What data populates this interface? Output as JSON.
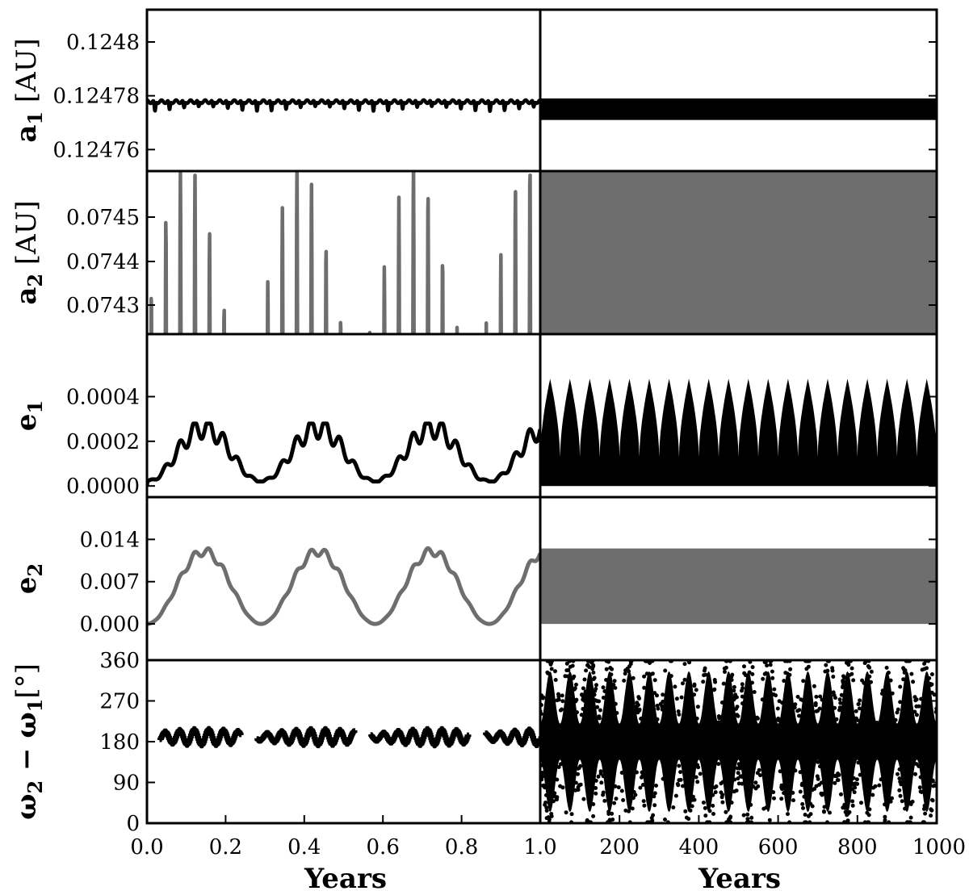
{
  "chart_data": {
    "type": "line",
    "layout": "5 rows x 2 columns, shared y-axis per row",
    "colors": {
      "planet1": "#000000",
      "planet2": "#6e6e6e"
    },
    "left_x": {
      "label": "Years",
      "range": [
        0.0,
        1.0
      ],
      "ticks": [
        "0.0",
        "0.2",
        "0.4",
        "0.6",
        "0.8",
        "1.0"
      ]
    },
    "right_x": {
      "label": "Years",
      "range": [
        0,
        1000
      ],
      "ticks": [
        "200",
        "400",
        "600",
        "800",
        "1000"
      ]
    },
    "panels": [
      {
        "id": "a1",
        "ylabel_main": "a",
        "ylabel_sub": "1",
        "ylabel_unit": " [AU]",
        "yrange": [
          0.124752,
          0.124812
        ],
        "yticks": [
          {
            "v": 0.1248,
            "t": "0.1248"
          },
          {
            "v": 0.12478,
            "t": "0.12478"
          },
          {
            "v": 0.12476,
            "t": "0.12476"
          }
        ],
        "color": "#000000",
        "left": {
          "style": "line",
          "series": "short-period oscillation",
          "baseline": 0.124776,
          "high": 0.124779,
          "low": 0.124772,
          "cycles_per_year": 27
        },
        "right": {
          "style": "band",
          "band": [
            0.124771,
            0.124779
          ]
        }
      },
      {
        "id": "a2",
        "ylabel_main": "a",
        "ylabel_sub": "2",
        "ylabel_unit": " [AU]",
        "yrange": [
          0.074425,
          0.07446
        ],
        "yticks": [
          {
            "v": 0.0745,
            "t": "0.0745"
          },
          {
            "v": 0.0744,
            "t": "0.0744"
          },
          {
            "v": 0.0743,
            "t": "0.0743"
          }
        ],
        "ytick_note": "tick values as printed; placed at 0.07445/0.07440/0.07435 positions",
        "color": "#6e6e6e",
        "left": {
          "style": "line",
          "series": "short-period oscillation",
          "baseline": 0.07438,
          "high": 0.07447,
          "low": 0.07433,
          "cycles_per_year": 27
        },
        "right": {
          "style": "band",
          "band": [
            0.07433,
            0.07447
          ]
        }
      },
      {
        "id": "e1",
        "ylabel_main": "e",
        "ylabel_sub": "1",
        "ylabel_unit": "",
        "yrange": [
          -5e-05,
          0.00068
        ],
        "yticks": [
          {
            "v": 0.0004,
            "t": "0.0004"
          },
          {
            "v": 0.0002,
            "t": "0.0002"
          },
          {
            "v": 0.0,
            "t": "0.0000"
          }
        ],
        "color": "#000000",
        "left": {
          "style": "line",
          "series": "secular cycle ~0.29 yr",
          "max": 0.00026,
          "min": 2e-05
        },
        "right": {
          "style": "envelope",
          "cycles": 20,
          "outer_max": 0.00048,
          "inner_max": 0.00013,
          "min": 0.0
        }
      },
      {
        "id": "e2",
        "ylabel_main": "e",
        "ylabel_sub": "2",
        "ylabel_unit": "",
        "yrange": [
          -0.006,
          0.021
        ],
        "yticks": [
          {
            "v": 0.014,
            "t": "0.014"
          },
          {
            "v": 0.007,
            "t": "0.007"
          },
          {
            "v": 0.0,
            "t": "0.000"
          }
        ],
        "color": "#6e6e6e",
        "left": {
          "style": "line",
          "series": "secular cycle ~0.29 yr",
          "max": 0.012,
          "min": 0.0
        },
        "right": {
          "style": "band",
          "band": [
            0.0,
            0.0125
          ]
        }
      },
      {
        "id": "dw",
        "ylabel_main": "ω",
        "ylabel_sub": "2",
        "ylabel_mid": " − ω",
        "ylabel_sub2": "1",
        "ylabel_unit": "[°]",
        "yrange": [
          0,
          360
        ],
        "yticks": [
          {
            "v": 360,
            "t": "360"
          },
          {
            "v": 270,
            "t": "270"
          },
          {
            "v": 180,
            "t": "180"
          },
          {
            "v": 90,
            "t": "90"
          },
          {
            "v": 0,
            "t": "0"
          }
        ],
        "color": "#000000",
        "left": {
          "style": "markers",
          "center": 190,
          "spread": 25
        },
        "right": {
          "style": "scatter-envelope",
          "cycles": 20,
          "center": 180
        }
      }
    ]
  }
}
